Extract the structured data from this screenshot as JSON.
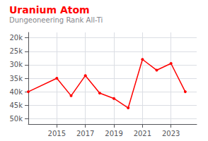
{
  "chart_data": {
    "type": "line",
    "title": "Uranium Atom",
    "subtitle": "Dungeoneering Rank All-Ti",
    "x": [
      2013,
      2015,
      2016,
      2017,
      2018,
      2019,
      2020,
      2021,
      2022,
      2023,
      2024
    ],
    "values": [
      40000,
      35000,
      41500,
      34000,
      40500,
      42500,
      46000,
      28000,
      32000,
      29500,
      40000
    ],
    "color": "#ff0000",
    "marker": "circle",
    "xlim": [
      2013.0,
      2024.8
    ],
    "xticks": [
      2015,
      2017,
      2019,
      2021,
      2023
    ],
    "ylim": [
      52000,
      18000
    ],
    "yticks": [
      {
        "value": 20000,
        "label": "20k"
      },
      {
        "value": 25000,
        "label": "25k"
      },
      {
        "value": 30000,
        "label": "30k"
      },
      {
        "value": 35000,
        "label": "35k"
      },
      {
        "value": 40000,
        "label": "40k"
      },
      {
        "value": 45000,
        "label": "45k"
      },
      {
        "value": 50000,
        "label": "50k"
      }
    ],
    "grid": true
  }
}
